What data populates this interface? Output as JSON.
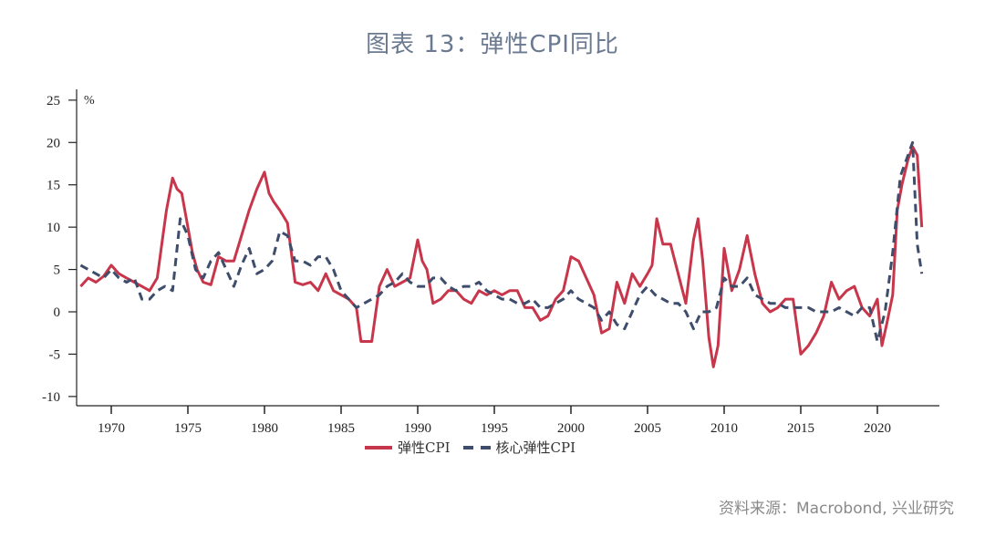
{
  "title": "图表 13：弹性CPI同比",
  "source": "资料来源：Macrobond, 兴业研究",
  "colors": {
    "flexible_cpi": "#c8364b",
    "core_flexible_cpi": "#3e4d6b",
    "title": "#6b7a90",
    "axis": "#222222"
  },
  "chart_data": {
    "type": "line",
    "title": "图表 13：弹性CPI同比",
    "xlabel": "",
    "ylabel": "%",
    "ylim": [
      -10,
      25
    ],
    "xlim": [
      1968,
      2023
    ],
    "yticks": [
      25,
      20,
      15,
      10,
      5,
      0,
      -5,
      -10
    ],
    "ytick_labels": [
      "25",
      "20",
      "15",
      "10",
      "5",
      "0",
      "-5",
      "-10"
    ],
    "xticks": [
      1970,
      1975,
      1980,
      1985,
      1990,
      1995,
      2000,
      2005,
      2010,
      2015,
      2020
    ],
    "xtick_labels": [
      "1970",
      "1975",
      "1980",
      "1985",
      "1990",
      "1995",
      "2000",
      "2005",
      "2010",
      "2015",
      "2020"
    ],
    "grid": false,
    "legend_position": "bottom",
    "legend": [
      "弹性CPI",
      "核心弹性CPI"
    ],
    "series": [
      {
        "name": "弹性CPI",
        "style": "solid",
        "color": "#c8364b",
        "x": [
          1968.0,
          1968.5,
          1969.0,
          1969.5,
          1970.0,
          1970.5,
          1971.0,
          1971.5,
          1972.0,
          1972.5,
          1973.0,
          1973.3,
          1973.6,
          1974.0,
          1974.3,
          1974.6,
          1975.0,
          1975.3,
          1975.6,
          1976.0,
          1976.5,
          1977.0,
          1977.5,
          1978.0,
          1978.5,
          1979.0,
          1979.5,
          1980.0,
          1980.3,
          1980.6,
          1981.0,
          1981.5,
          1982.0,
          1982.5,
          1983.0,
          1983.5,
          1984.0,
          1984.5,
          1985.0,
          1985.5,
          1986.0,
          1986.3,
          1986.6,
          1987.0,
          1987.5,
          1988.0,
          1988.5,
          1989.0,
          1989.5,
          1990.0,
          1990.3,
          1990.6,
          1991.0,
          1991.5,
          1992.0,
          1992.5,
          1993.0,
          1993.5,
          1994.0,
          1994.5,
          1995.0,
          1995.5,
          1996.0,
          1996.5,
          1997.0,
          1997.5,
          1998.0,
          1998.5,
          1999.0,
          1999.5,
          2000.0,
          2000.5,
          2001.0,
          2001.5,
          2002.0,
          2002.5,
          2003.0,
          2003.5,
          2004.0,
          2004.5,
          2005.0,
          2005.3,
          2005.6,
          2006.0,
          2006.5,
          2007.0,
          2007.5,
          2008.0,
          2008.3,
          2008.6,
          2009.0,
          2009.3,
          2009.6,
          2010.0,
          2010.5,
          2011.0,
          2011.5,
          2012.0,
          2012.5,
          2013.0,
          2013.5,
          2014.0,
          2014.5,
          2015.0,
          2015.5,
          2016.0,
          2016.5,
          2017.0,
          2017.5,
          2018.0,
          2018.5,
          2019.0,
          2019.5,
          2020.0,
          2020.3,
          2020.6,
          2021.0,
          2021.3,
          2021.6,
          2022.0,
          2022.3,
          2022.6,
          2022.9
        ],
        "values": [
          3.0,
          4.0,
          3.5,
          4.2,
          5.5,
          4.5,
          4.0,
          3.5,
          3.0,
          2.5,
          4.0,
          8.0,
          12.0,
          15.8,
          14.5,
          14.0,
          10.0,
          7.0,
          5.0,
          3.5,
          3.2,
          6.5,
          6.0,
          6.0,
          9.0,
          12.0,
          14.5,
          16.5,
          14.0,
          13.0,
          12.0,
          10.5,
          3.5,
          3.2,
          3.5,
          2.5,
          4.5,
          2.5,
          2.0,
          1.5,
          0.5,
          -3.5,
          -3.5,
          -3.5,
          3.0,
          5.0,
          3.0,
          3.5,
          4.0,
          8.5,
          6.0,
          5.0,
          1.0,
          1.5,
          2.5,
          2.5,
          1.5,
          1.0,
          2.5,
          2.0,
          2.5,
          2.0,
          2.5,
          2.5,
          0.5,
          0.5,
          -1.0,
          -0.5,
          1.5,
          2.5,
          6.5,
          6.0,
          4.0,
          2.0,
          -2.5,
          -2.0,
          3.5,
          1.0,
          4.5,
          3.0,
          4.5,
          5.5,
          11.0,
          8.0,
          8.0,
          4.5,
          1.0,
          8.5,
          11.0,
          6.0,
          -3.0,
          -6.5,
          -4.0,
          7.5,
          2.5,
          5.0,
          9.0,
          4.5,
          1.0,
          0.0,
          0.5,
          1.5,
          1.5,
          -5.0,
          -4.0,
          -2.5,
          -0.5,
          3.5,
          1.5,
          2.5,
          3.0,
          0.5,
          -0.5,
          1.5,
          -4.0,
          -1.5,
          2.0,
          12.0,
          15.0,
          18.0,
          19.5,
          18.5,
          10.0
        ]
      },
      {
        "name": "核心弹性CPI",
        "style": "dashed",
        "color": "#3e4d6b",
        "x": [
          1968.0,
          1968.5,
          1969.0,
          1969.5,
          1970.0,
          1970.5,
          1971.0,
          1971.5,
          1972.0,
          1972.5,
          1973.0,
          1973.5,
          1974.0,
          1974.5,
          1975.0,
          1975.5,
          1976.0,
          1976.5,
          1977.0,
          1977.5,
          1978.0,
          1978.5,
          1979.0,
          1979.5,
          1980.0,
          1980.5,
          1981.0,
          1981.5,
          1982.0,
          1982.5,
          1983.0,
          1983.5,
          1984.0,
          1984.5,
          1985.0,
          1985.5,
          1986.0,
          1986.5,
          1987.0,
          1987.5,
          1988.0,
          1988.5,
          1989.0,
          1989.5,
          1990.0,
          1990.5,
          1991.0,
          1991.5,
          1992.0,
          1992.5,
          1993.0,
          1993.5,
          1994.0,
          1994.5,
          1995.0,
          1995.5,
          1996.0,
          1996.5,
          1997.0,
          1997.5,
          1998.0,
          1998.5,
          1999.0,
          1999.5,
          2000.0,
          2000.5,
          2001.0,
          2001.5,
          2002.0,
          2002.5,
          2003.0,
          2003.5,
          2004.0,
          2004.5,
          2005.0,
          2005.5,
          2006.0,
          2006.5,
          2007.0,
          2007.5,
          2008.0,
          2008.5,
          2009.0,
          2009.5,
          2010.0,
          2010.5,
          2011.0,
          2011.5,
          2012.0,
          2012.5,
          2013.0,
          2013.5,
          2014.0,
          2014.5,
          2015.0,
          2015.5,
          2016.0,
          2016.5,
          2017.0,
          2017.5,
          2018.0,
          2018.5,
          2019.0,
          2019.5,
          2020.0,
          2020.5,
          2021.0,
          2021.5,
          2022.0,
          2022.3,
          2022.6,
          2022.9
        ],
        "values": [
          5.5,
          5.0,
          4.5,
          4.0,
          5.0,
          4.0,
          3.5,
          4.0,
          1.5,
          1.5,
          2.5,
          3.0,
          2.5,
          11.0,
          9.0,
          5.0,
          4.0,
          6.0,
          7.0,
          5.0,
          3.0,
          5.5,
          7.5,
          4.5,
          5.0,
          6.0,
          9.5,
          9.0,
          6.0,
          6.0,
          5.5,
          6.5,
          6.5,
          5.0,
          2.5,
          1.5,
          0.5,
          1.0,
          1.5,
          2.0,
          3.0,
          3.5,
          4.5,
          3.5,
          3.0,
          3.0,
          4.0,
          4.0,
          3.0,
          2.5,
          3.0,
          3.0,
          3.5,
          2.5,
          2.0,
          1.5,
          1.5,
          1.0,
          1.0,
          1.5,
          0.5,
          0.5,
          1.0,
          1.5,
          2.5,
          1.5,
          1.0,
          0.5,
          -1.0,
          0.0,
          -1.5,
          -2.0,
          0.0,
          2.0,
          3.0,
          2.0,
          1.5,
          1.0,
          1.0,
          0.0,
          -2.0,
          0.0,
          0.0,
          0.5,
          4.0,
          3.0,
          3.0,
          4.0,
          2.0,
          1.5,
          1.0,
          1.0,
          0.5,
          0.5,
          0.5,
          0.5,
          0.0,
          0.0,
          0.0,
          0.5,
          0.0,
          -0.5,
          0.5,
          0.5,
          -3.5,
          0.0,
          7.0,
          16.0,
          18.5,
          20.0,
          8.0,
          4.5
        ]
      }
    ]
  },
  "legend": {
    "item1": "弹性CPI",
    "item2": "核心弹性CPI"
  },
  "axis": {
    "unit": "%"
  }
}
